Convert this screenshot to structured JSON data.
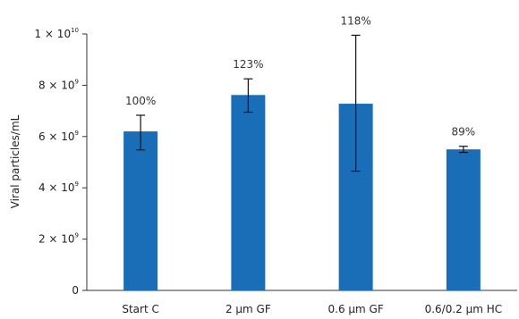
{
  "chart_data": {
    "type": "bar",
    "title": "",
    "xlabel": "",
    "ylabel": "Viral particles/mL",
    "ylim": [
      0,
      10000000000
    ],
    "yticks": [
      {
        "value": 0,
        "mantissa": "0",
        "exponent": ""
      },
      {
        "value": 2000000000,
        "mantissa": "2 × 10",
        "exponent": "9"
      },
      {
        "value": 4000000000,
        "mantissa": "4 × 10",
        "exponent": "9"
      },
      {
        "value": 6000000000,
        "mantissa": "6 × 10",
        "exponent": "9"
      },
      {
        "value": 8000000000,
        "mantissa": "8 × 10",
        "exponent": "9"
      },
      {
        "value": 10000000000,
        "mantissa": "1 × 10",
        "exponent": "10"
      }
    ],
    "categories": [
      "Start C",
      "2 µm GF",
      "0.6 µm GF",
      "0.6/0.2 µm HC"
    ],
    "values": [
      6200000000,
      7620000000,
      7280000000,
      5500000000
    ],
    "error_low": [
      5480000000,
      6950000000,
      4650000000,
      5380000000
    ],
    "error_high": [
      6830000000,
      8250000000,
      9950000000,
      5620000000
    ],
    "data_labels": [
      "100%",
      "123%",
      "118%",
      "89%"
    ],
    "bar_color": "#1a6eb8",
    "grid": false
  }
}
